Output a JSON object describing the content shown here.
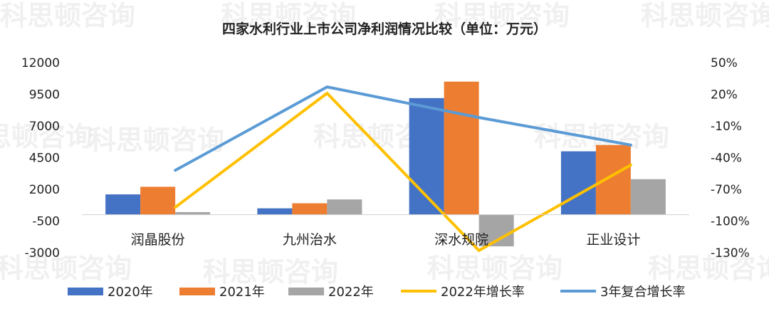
{
  "chart_data": {
    "type": "bar",
    "title": "四家水利行业上市公司净利润情况比较（单位：万元）",
    "categories": [
      "润晶股份",
      "九州治水",
      "深水规院",
      "正业设计"
    ],
    "series": [
      {
        "name": "2020年",
        "kind": "bar",
        "axis": "left",
        "values": [
          1600,
          500,
          9200,
          5000
        ]
      },
      {
        "name": "2021年",
        "kind": "bar",
        "axis": "left",
        "values": [
          2200,
          900,
          10500,
          5500
        ]
      },
      {
        "name": "2022年",
        "kind": "bar",
        "axis": "left",
        "values": [
          200,
          1200,
          -2500,
          2800
        ]
      },
      {
        "name": "2022年增长率",
        "kind": "line",
        "axis": "right",
        "values": [
          -87,
          21,
          -128,
          -47
        ]
      },
      {
        "name": "3年复合增长率",
        "kind": "line",
        "axis": "right",
        "values": [
          -52,
          27,
          -2,
          -28
        ]
      }
    ],
    "y_left": {
      "min": -3000,
      "max": 12000,
      "ticks": [
        "12000",
        "9500",
        "7000",
        "4500",
        "2000",
        "-500",
        "-3000"
      ]
    },
    "y_right": {
      "min": -130,
      "max": 50,
      "ticks": [
        "50%",
        "20%",
        "-10%",
        "-40%",
        "-70%",
        "-100%",
        "-130%"
      ]
    },
    "grid": false,
    "legend_position": "bottom",
    "colors": {
      "2020年": "#4472C4",
      "2021年": "#ED7D31",
      "2022年": "#A5A5A5",
      "2022年增长率": "#FFC000",
      "3年复合增长率": "#5B9BD5"
    }
  },
  "watermark": "科思顿咨询"
}
